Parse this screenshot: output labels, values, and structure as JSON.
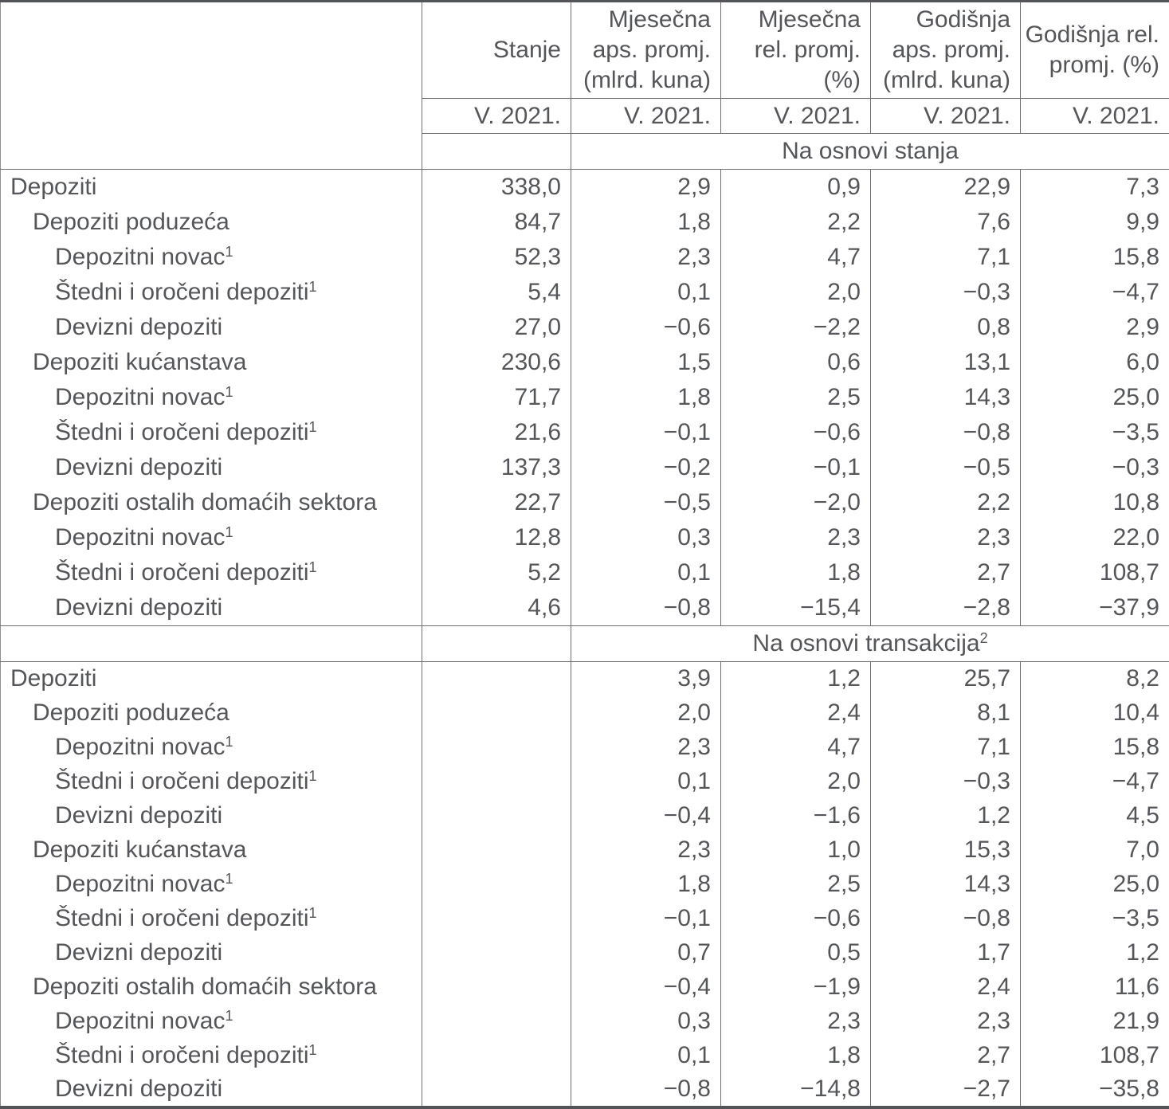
{
  "colors": {
    "text": "#55565a",
    "border": "#6e6f72",
    "border_heavy": "#535458",
    "border_edge": "#8f9093",
    "background": "#ffffff"
  },
  "table": {
    "columns": [
      {
        "lines": [
          ""
        ],
        "period": ""
      },
      {
        "lines": [
          "Stanje"
        ],
        "period": "V. 2021."
      },
      {
        "lines": [
          "Mjesečna",
          "aps. promj.",
          "(mlrd. kuna)"
        ],
        "period": "V. 2021."
      },
      {
        "lines": [
          "Mjesečna",
          "rel. promj.",
          "(%)"
        ],
        "period": "V. 2021."
      },
      {
        "lines": [
          "Godišnja",
          "aps. promj.",
          "(mlrd. kuna)"
        ],
        "period": "V. 2021."
      },
      {
        "lines": [
          "Godišnja rel.",
          "promj. (%)"
        ],
        "period": "V. 2021."
      }
    ],
    "sections": [
      {
        "title": "Na osnovi stanja",
        "sup": "",
        "rows": [
          {
            "label": "Depoziti",
            "sup": "",
            "indent": 0,
            "values": [
              "338,0",
              "2,9",
              "0,9",
              "22,9",
              "7,3"
            ]
          },
          {
            "label": "Depoziti poduzeća",
            "sup": "",
            "indent": 1,
            "values": [
              "84,7",
              "1,8",
              "2,2",
              "7,6",
              "9,9"
            ]
          },
          {
            "label": "Depozitni novac",
            "sup": "1",
            "indent": 2,
            "values": [
              "52,3",
              "2,3",
              "4,7",
              "7,1",
              "15,8"
            ]
          },
          {
            "label": "Štedni i oročeni depoziti",
            "sup": "1",
            "indent": 2,
            "values": [
              "5,4",
              "0,1",
              "2,0",
              "−0,3",
              "−4,7"
            ]
          },
          {
            "label": "Devizni depoziti",
            "sup": "",
            "indent": 2,
            "values": [
              "27,0",
              "−0,6",
              "−2,2",
              "0,8",
              "2,9"
            ]
          },
          {
            "label": "Depoziti kućanstava",
            "sup": "",
            "indent": 1,
            "values": [
              "230,6",
              "1,5",
              "0,6",
              "13,1",
              "6,0"
            ]
          },
          {
            "label": "Depozitni novac",
            "sup": "1",
            "indent": 2,
            "values": [
              "71,7",
              "1,8",
              "2,5",
              "14,3",
              "25,0"
            ]
          },
          {
            "label": "Štedni i oročeni depoziti",
            "sup": "1",
            "indent": 2,
            "values": [
              "21,6",
              "−0,1",
              "−0,6",
              "−0,8",
              "−3,5"
            ]
          },
          {
            "label": "Devizni depoziti",
            "sup": "",
            "indent": 2,
            "values": [
              "137,3",
              "−0,2",
              "−0,1",
              "−0,5",
              "−0,3"
            ]
          },
          {
            "label": "Depoziti ostalih domaćih sektora",
            "sup": "",
            "indent": 1,
            "values": [
              "22,7",
              "−0,5",
              "−2,0",
              "2,2",
              "10,8"
            ]
          },
          {
            "label": "Depozitni novac",
            "sup": "1",
            "indent": 2,
            "values": [
              "12,8",
              "0,3",
              "2,3",
              "2,3",
              "22,0"
            ]
          },
          {
            "label": "Štedni i oročeni depoziti",
            "sup": "1",
            "indent": 2,
            "values": [
              "5,2",
              "0,1",
              "1,8",
              "2,7",
              "108,7"
            ]
          },
          {
            "label": "Devizni depoziti",
            "sup": "",
            "indent": 2,
            "values": [
              "4,6",
              "−0,8",
              "−15,4",
              "−2,8",
              "−37,9"
            ]
          }
        ]
      },
      {
        "title": "Na osnovi transakcija",
        "sup": "2",
        "rows": [
          {
            "label": "Depoziti",
            "sup": "",
            "indent": 0,
            "values": [
              "",
              "3,9",
              "1,2",
              "25,7",
              "8,2"
            ]
          },
          {
            "label": "Depoziti poduzeća",
            "sup": "",
            "indent": 1,
            "values": [
              "",
              "2,0",
              "2,4",
              "8,1",
              "10,4"
            ]
          },
          {
            "label": "Depozitni novac",
            "sup": "1",
            "indent": 2,
            "values": [
              "",
              "2,3",
              "4,7",
              "7,1",
              "15,8"
            ]
          },
          {
            "label": "Štedni i oročeni depoziti",
            "sup": "1",
            "indent": 2,
            "values": [
              "",
              "0,1",
              "2,0",
              "−0,3",
              "−4,7"
            ]
          },
          {
            "label": "Devizni depoziti",
            "sup": "",
            "indent": 2,
            "values": [
              "",
              "−0,4",
              "−1,6",
              "1,2",
              "4,5"
            ]
          },
          {
            "label": "Depoziti kućanstava",
            "sup": "",
            "indent": 1,
            "values": [
              "",
              "2,3",
              "1,0",
              "15,3",
              "7,0"
            ]
          },
          {
            "label": "Depozitni novac",
            "sup": "1",
            "indent": 2,
            "values": [
              "",
              "1,8",
              "2,5",
              "14,3",
              "25,0"
            ]
          },
          {
            "label": "Štedni i oročeni depoziti",
            "sup": "1",
            "indent": 2,
            "values": [
              "",
              "−0,1",
              "−0,6",
              "−0,8",
              "−3,5"
            ]
          },
          {
            "label": "Devizni depoziti",
            "sup": "",
            "indent": 2,
            "values": [
              "",
              "0,7",
              "0,5",
              "1,7",
              "1,2"
            ]
          },
          {
            "label": "Depoziti ostalih domaćih sektora",
            "sup": "",
            "indent": 1,
            "values": [
              "",
              "−0,4",
              "−1,9",
              "2,4",
              "11,6"
            ]
          },
          {
            "label": "Depozitni novac",
            "sup": "1",
            "indent": 2,
            "values": [
              "",
              "0,3",
              "2,3",
              "2,3",
              "21,9"
            ]
          },
          {
            "label": "Štedni i oročeni depoziti",
            "sup": "1",
            "indent": 2,
            "values": [
              "",
              "0,1",
              "1,8",
              "2,7",
              "108,7"
            ]
          },
          {
            "label": "Devizni depoziti",
            "sup": "",
            "indent": 2,
            "values": [
              "",
              "−0,8",
              "−14,8",
              "−2,7",
              "−35,8"
            ]
          }
        ]
      }
    ]
  }
}
